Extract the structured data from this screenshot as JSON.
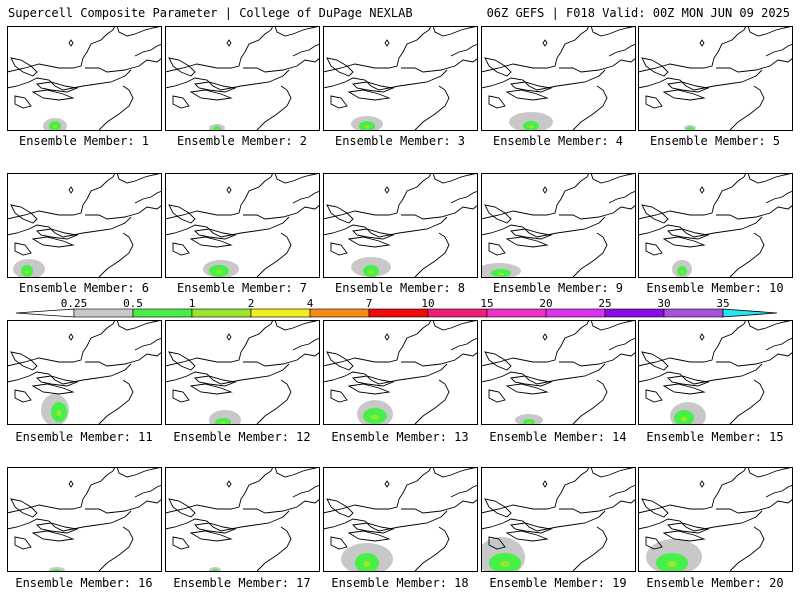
{
  "header": {
    "title_left": "Supercell Composite Parameter | College of DuPage NEXLAB",
    "title_right": "06Z GEFS | F018 Valid: 00Z MON JUN 09 2025"
  },
  "member_label_prefix": "Ensemble Member: ",
  "members": [
    {
      "number": 1
    },
    {
      "number": 2
    },
    {
      "number": 3
    },
    {
      "number": 4
    },
    {
      "number": 5
    },
    {
      "number": 6
    },
    {
      "number": 7
    },
    {
      "number": 8
    },
    {
      "number": 9
    },
    {
      "number": 10
    },
    {
      "number": 11
    },
    {
      "number": 12
    },
    {
      "number": 13
    },
    {
      "number": 14
    },
    {
      "number": 15
    },
    {
      "number": 16
    },
    {
      "number": 17
    },
    {
      "number": 18
    },
    {
      "number": 19
    },
    {
      "number": 20
    }
  ],
  "legend": {
    "levels": [
      "0.25",
      "0.5",
      "1",
      "2",
      "4",
      "7",
      "10",
      "15",
      "20",
      "25",
      "30",
      "35"
    ],
    "colors": [
      "#c8c8c8",
      "#46f046",
      "#9be62d",
      "#f0f01e",
      "#f58c14",
      "#f00a0a",
      "#f01e78",
      "#f032c8",
      "#dc32f0",
      "#8c0ae6",
      "#aa50dc",
      "#28e6f0"
    ]
  }
}
